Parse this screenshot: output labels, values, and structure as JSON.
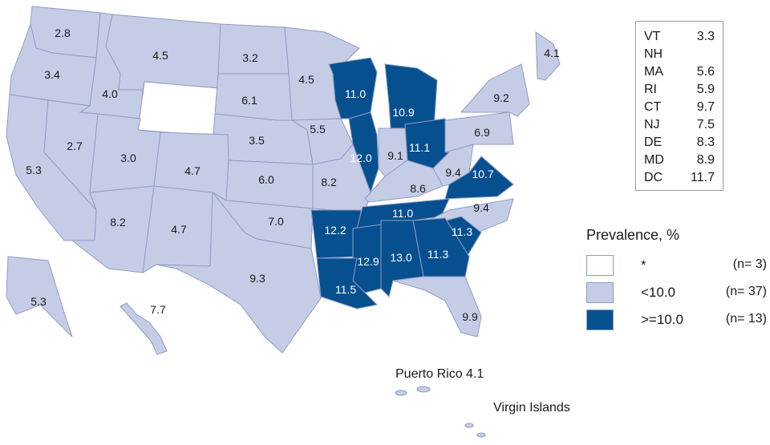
{
  "colors": {
    "below_threshold": "#c5cde6",
    "above_threshold": "#06508f",
    "no_data": "#ffffff",
    "border": "#8f9bc4"
  },
  "states": [
    {
      "abbr": "WA",
      "value": "2.8",
      "class": "low"
    },
    {
      "abbr": "OR",
      "value": "3.4",
      "class": "low"
    },
    {
      "abbr": "ID",
      "value": "4.0",
      "class": "low"
    },
    {
      "abbr": "MT",
      "value": "4.5",
      "class": "low"
    },
    {
      "abbr": "WY",
      "value": "",
      "class": "none"
    },
    {
      "abbr": "ND",
      "value": "3.2",
      "class": "low"
    },
    {
      "abbr": "SD",
      "value": "6.1",
      "class": "low"
    },
    {
      "abbr": "NE",
      "value": "3.5",
      "class": "low"
    },
    {
      "abbr": "MN",
      "value": "4.5",
      "class": "low"
    },
    {
      "abbr": "IA",
      "value": "5.5",
      "class": "low"
    },
    {
      "abbr": "CA",
      "value": "5.3",
      "class": "low"
    },
    {
      "abbr": "NV",
      "value": "2.7",
      "class": "low"
    },
    {
      "abbr": "UT",
      "value": "3.0",
      "class": "low"
    },
    {
      "abbr": "CO",
      "value": "4.7",
      "class": "low"
    },
    {
      "abbr": "KS",
      "value": "6.0",
      "class": "low"
    },
    {
      "abbr": "MO",
      "value": "8.2",
      "class": "low"
    },
    {
      "abbr": "AZ",
      "value": "8.2",
      "class": "low"
    },
    {
      "abbr": "NM",
      "value": "4.7",
      "class": "low"
    },
    {
      "abbr": "OK",
      "value": "7.0",
      "class": "low"
    },
    {
      "abbr": "TX",
      "value": "9.3",
      "class": "low"
    },
    {
      "abbr": "WI",
      "value": "11.0",
      "class": "high"
    },
    {
      "abbr": "MI",
      "value": "10.9",
      "class": "high"
    },
    {
      "abbr": "IL",
      "value": "12.0",
      "class": "high"
    },
    {
      "abbr": "IN",
      "value": "9.1",
      "class": "low"
    },
    {
      "abbr": "OH",
      "value": "11.1",
      "class": "high"
    },
    {
      "abbr": "KY",
      "value": "8.6",
      "class": "low"
    },
    {
      "abbr": "WV",
      "value": "9.4",
      "class": "low"
    },
    {
      "abbr": "VA",
      "value": "10.7",
      "class": "high"
    },
    {
      "abbr": "PA",
      "value": "6.9",
      "class": "low"
    },
    {
      "abbr": "NY",
      "value": "9.2",
      "class": "low"
    },
    {
      "abbr": "ME",
      "value": "4.1",
      "class": "low"
    },
    {
      "abbr": "AR",
      "value": "12.2",
      "class": "high"
    },
    {
      "abbr": "TN",
      "value": "11.0",
      "class": "high"
    },
    {
      "abbr": "NC",
      "value": "9.4",
      "class": "low"
    },
    {
      "abbr": "SC",
      "value": "11.3",
      "class": "high"
    },
    {
      "abbr": "GA",
      "value": "11.3",
      "class": "high"
    },
    {
      "abbr": "AL",
      "value": "13.0",
      "class": "high"
    },
    {
      "abbr": "MS",
      "value": "12.9",
      "class": "high"
    },
    {
      "abbr": "LA",
      "value": "11.5",
      "class": "high"
    },
    {
      "abbr": "FL",
      "value": "9.9",
      "class": "low"
    },
    {
      "abbr": "AK",
      "value": "5.3",
      "class": "low"
    },
    {
      "abbr": "HI",
      "value": "7.7",
      "class": "low"
    }
  ],
  "northeast_box": [
    {
      "abbr": "VT",
      "value": "3.3"
    },
    {
      "abbr": "NH",
      "value": ""
    },
    {
      "abbr": "MA",
      "value": "5.6"
    },
    {
      "abbr": "RI",
      "value": "5.9"
    },
    {
      "abbr": "CT",
      "value": "9.7"
    },
    {
      "abbr": "NJ",
      "value": "7.5"
    },
    {
      "abbr": "DE",
      "value": "8.3"
    },
    {
      "abbr": "MD",
      "value": "8.9"
    },
    {
      "abbr": "DC",
      "value": "11.7"
    }
  ],
  "territories": {
    "puerto_rico": "Puerto Rico 4.1",
    "virgin_islands": "Virgin Islands"
  },
  "legend": {
    "title": "Prevalence, %",
    "items": [
      {
        "label": "*",
        "count": "(n=  3)",
        "color": "#ffffff"
      },
      {
        "label": "<10.0",
        "count": "(n= 37)",
        "color": "#c5cde6"
      },
      {
        "label": ">=10.0",
        "count": "(n= 13)",
        "color": "#06508f"
      }
    ]
  }
}
